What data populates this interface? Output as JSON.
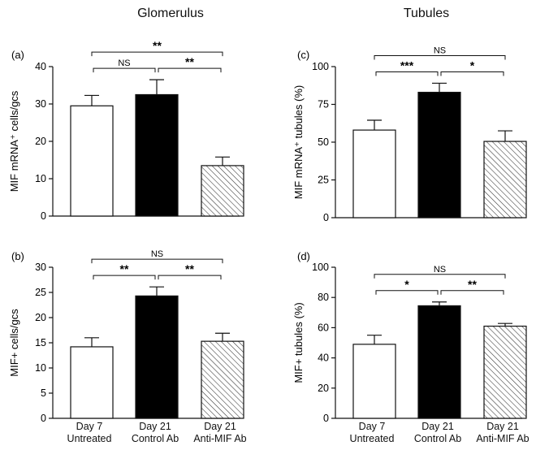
{
  "column_titles": {
    "left": "Glomerulus",
    "right": "Tubules"
  },
  "x_categories": [
    {
      "line1": "Day 7",
      "line2": "Untreated"
    },
    {
      "line1": "Day 21",
      "line2": "Control Ab"
    },
    {
      "line1": "Day 21",
      "line2": "Anti-MIF Ab"
    }
  ],
  "colors": {
    "bar_untreated": "#ffffff",
    "bar_control": "#000000",
    "bar_anti": "#ffffff",
    "stroke": "#111111"
  },
  "chart_data": [
    {
      "type": "bar",
      "panel_label": "(a)",
      "categories": [
        "Day 7 Untreated",
        "Day 21 Control Ab",
        "Day 21 Anti-MIF Ab"
      ],
      "values": [
        29.5,
        32.5,
        13.5
      ],
      "errors": [
        2.8,
        4.0,
        2.3
      ],
      "ylabel": "MIF mRNA⁺ cells/gcs",
      "ylim": [
        0,
        40
      ],
      "yticks": [
        0,
        10,
        20,
        30,
        40
      ],
      "significance": [
        {
          "from": 0,
          "to": 1,
          "label": "NS"
        },
        {
          "from": 1,
          "to": 2,
          "label": "**"
        },
        {
          "from": 0,
          "to": 2,
          "label": "**"
        }
      ]
    },
    {
      "type": "bar",
      "panel_label": "(c)",
      "categories": [
        "Day 7 Untreated",
        "Day 21 Control Ab",
        "Day 21 Anti-MIF Ab"
      ],
      "values": [
        58,
        83,
        50.5
      ],
      "errors": [
        6.5,
        6.0,
        7.0
      ],
      "ylabel": "MIF mRNA⁺ tubules (%)",
      "ylim": [
        0,
        100
      ],
      "yticks": [
        0,
        25,
        50,
        75,
        100
      ],
      "significance": [
        {
          "from": 0,
          "to": 1,
          "label": "***"
        },
        {
          "from": 1,
          "to": 2,
          "label": "*"
        },
        {
          "from": 0,
          "to": 2,
          "label": "NS"
        }
      ]
    },
    {
      "type": "bar",
      "panel_label": "(b)",
      "categories": [
        "Day 7 Untreated",
        "Day 21 Control Ab",
        "Day 21 Anti-MIF Ab"
      ],
      "values": [
        14.2,
        24.3,
        15.3
      ],
      "errors": [
        1.8,
        1.8,
        1.6
      ],
      "ylabel": "MIF+ cells/gcs",
      "ylim": [
        0,
        30
      ],
      "yticks": [
        0,
        5,
        10,
        15,
        20,
        25,
        30
      ],
      "significance": [
        {
          "from": 0,
          "to": 1,
          "label": "**"
        },
        {
          "from": 1,
          "to": 2,
          "label": "**"
        },
        {
          "from": 0,
          "to": 2,
          "label": "NS"
        }
      ]
    },
    {
      "type": "bar",
      "panel_label": "(d)",
      "categories": [
        "Day 7 Untreated",
        "Day 21 Control Ab",
        "Day 21 Anti-MIF Ab"
      ],
      "values": [
        49,
        74.5,
        61
      ],
      "errors": [
        6.0,
        2.5,
        1.8
      ],
      "ylabel": "MIF+ tubules (%)",
      "ylim": [
        0,
        100
      ],
      "yticks": [
        0,
        20,
        40,
        60,
        80,
        100
      ],
      "significance": [
        {
          "from": 0,
          "to": 1,
          "label": "*"
        },
        {
          "from": 1,
          "to": 2,
          "label": "**"
        },
        {
          "from": 0,
          "to": 2,
          "label": "NS"
        }
      ]
    }
  ]
}
